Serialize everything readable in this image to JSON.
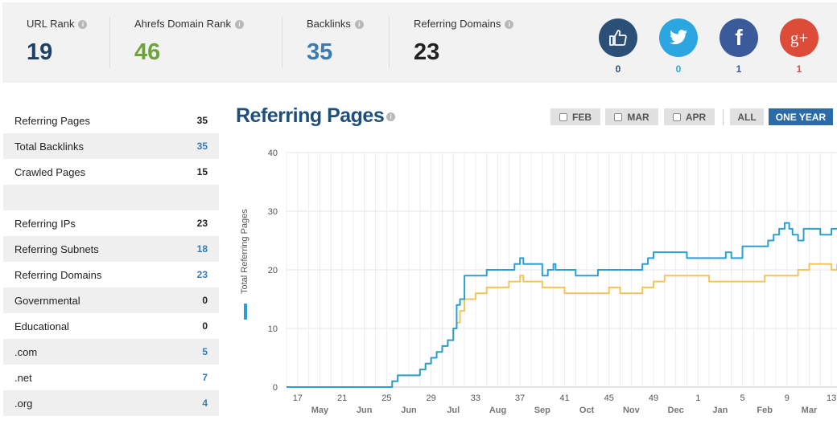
{
  "stats": [
    {
      "label": "URL Rank",
      "value": "19",
      "color": "#1f3f66"
    },
    {
      "label": "Ahrefs Domain Rank",
      "value": "46",
      "color": "#6ea33c"
    },
    {
      "label": "Backlinks",
      "value": "35",
      "color": "#3a7ab5"
    },
    {
      "label": "Referring Domains",
      "value": "23",
      "color": "#222222"
    }
  ],
  "social": [
    {
      "icon": "thumbs-up-icon",
      "count": "0",
      "bg": "#2b4f77",
      "count_color": "#2b4f77"
    },
    {
      "icon": "twitter-icon",
      "count": "0",
      "bg": "#2ba6e0",
      "count_color": "#2ba6e0"
    },
    {
      "icon": "facebook-icon",
      "count": "1",
      "bg": "#3b5a9a",
      "count_color": "#3b5a9a"
    },
    {
      "icon": "google-plus-icon",
      "count": "1",
      "bg": "#dd4b39",
      "count_color": "#dd4b39"
    }
  ],
  "google_plus_glyph": "g+",
  "facebook_glyph": "f",
  "side_rows": [
    {
      "label": "Referring Pages",
      "value": "35",
      "style": "dark"
    },
    {
      "label": "Total Backlinks",
      "value": "35",
      "style": "blue"
    },
    {
      "label": "Crawled Pages",
      "value": "15",
      "style": "dark"
    },
    {
      "label": "",
      "value": "",
      "style": "dark"
    },
    {
      "label": "Referring IPs",
      "value": "23",
      "style": "dark"
    },
    {
      "label": "Referring Subnets",
      "value": "18",
      "style": "blue"
    },
    {
      "label": "Referring Domains",
      "value": "23",
      "style": "blue"
    },
    {
      "label": "Governmental",
      "value": "0",
      "style": "dark"
    },
    {
      "label": "Educational",
      "value": "0",
      "style": "dark"
    },
    {
      "label": ".com",
      "value": "5",
      "style": "blue"
    },
    {
      "label": ".net",
      "value": "7",
      "style": "blue"
    },
    {
      "label": ".org",
      "value": "4",
      "style": "blue"
    }
  ],
  "chart_title": "Referring Pages",
  "info_glyph": "i",
  "filters": {
    "feb": "FEB",
    "mar": "MAR",
    "apr": "APR",
    "all": "ALL",
    "one_year": "ONE YEAR"
  },
  "chart_data": {
    "type": "line",
    "ylabel": "Total Referring Pages",
    "ylim": [
      0,
      40
    ],
    "yticks": [
      "0",
      "10",
      "20",
      "30",
      "40"
    ],
    "x_week_labels": [
      "17",
      "21",
      "25",
      "29",
      "33",
      "37",
      "41",
      "45",
      "49",
      "1",
      "5",
      "9",
      "13"
    ],
    "x_month_labels": [
      "May",
      "Jun",
      "Jun",
      "Jul",
      "Aug",
      "Sep",
      "Oct",
      "Nov",
      "Dec",
      "Jan",
      "Feb",
      "Mar"
    ],
    "grid": true,
    "colors": {
      "series1": "#2b9fd4",
      "series2": "#f5c35a"
    },
    "x_range": [
      16,
      65.5
    ],
    "series": [
      {
        "x": [
          16,
          25.5,
          26,
          27,
          28,
          28.5,
          29,
          29.5,
          30,
          30.5,
          31,
          31.3,
          31.6,
          32,
          33,
          34,
          35,
          36,
          36.5,
          37,
          37.3,
          38,
          39,
          39.5,
          40,
          40.2,
          41,
          42,
          43,
          44,
          45,
          46,
          47,
          48,
          48.5,
          49,
          50,
          51,
          52,
          53,
          54,
          55,
          55.5,
          56,
          57,
          58,
          59,
          59.3,
          59.8,
          60.3,
          60.8,
          61.2,
          61.5,
          62,
          62.5,
          63,
          64,
          65,
          65.5
        ],
        "y": [
          0,
          1,
          2,
          2,
          3,
          4,
          5,
          6,
          7,
          8,
          10,
          14,
          15,
          19,
          19,
          20,
          20,
          20,
          21,
          22,
          21,
          21,
          19,
          20,
          21,
          20,
          20,
          19,
          19,
          20,
          20,
          20,
          20,
          21,
          22,
          23,
          23,
          23,
          22,
          22,
          22,
          22,
          23,
          22,
          24,
          24,
          24,
          25,
          26,
          27,
          28,
          27,
          26,
          25,
          27,
          27,
          26,
          27,
          27
        ]
      },
      {
        "x": [
          16,
          25.5,
          26,
          27,
          28,
          28.5,
          29,
          29.5,
          30,
          30.5,
          31,
          31.3,
          31.6,
          32,
          33,
          34,
          35,
          36,
          37,
          37.3,
          38,
          39,
          40,
          41,
          42,
          43,
          44,
          45,
          46,
          47,
          48,
          49,
          50,
          51,
          52,
          53,
          54,
          55,
          55.5,
          56,
          57,
          58,
          59,
          60,
          61,
          62,
          63,
          64,
          65,
          65.5
        ],
        "y": [
          0,
          1,
          2,
          2,
          3,
          4,
          5,
          6,
          7,
          8,
          10,
          11,
          13,
          15,
          16,
          17,
          17,
          18,
          19,
          18,
          18,
          17,
          17,
          16,
          16,
          16,
          16,
          17,
          16,
          16,
          17,
          18,
          19,
          19,
          19,
          19,
          18,
          18,
          18,
          18,
          18,
          18,
          19,
          19,
          19,
          20,
          21,
          21,
          20,
          21
        ]
      }
    ]
  }
}
